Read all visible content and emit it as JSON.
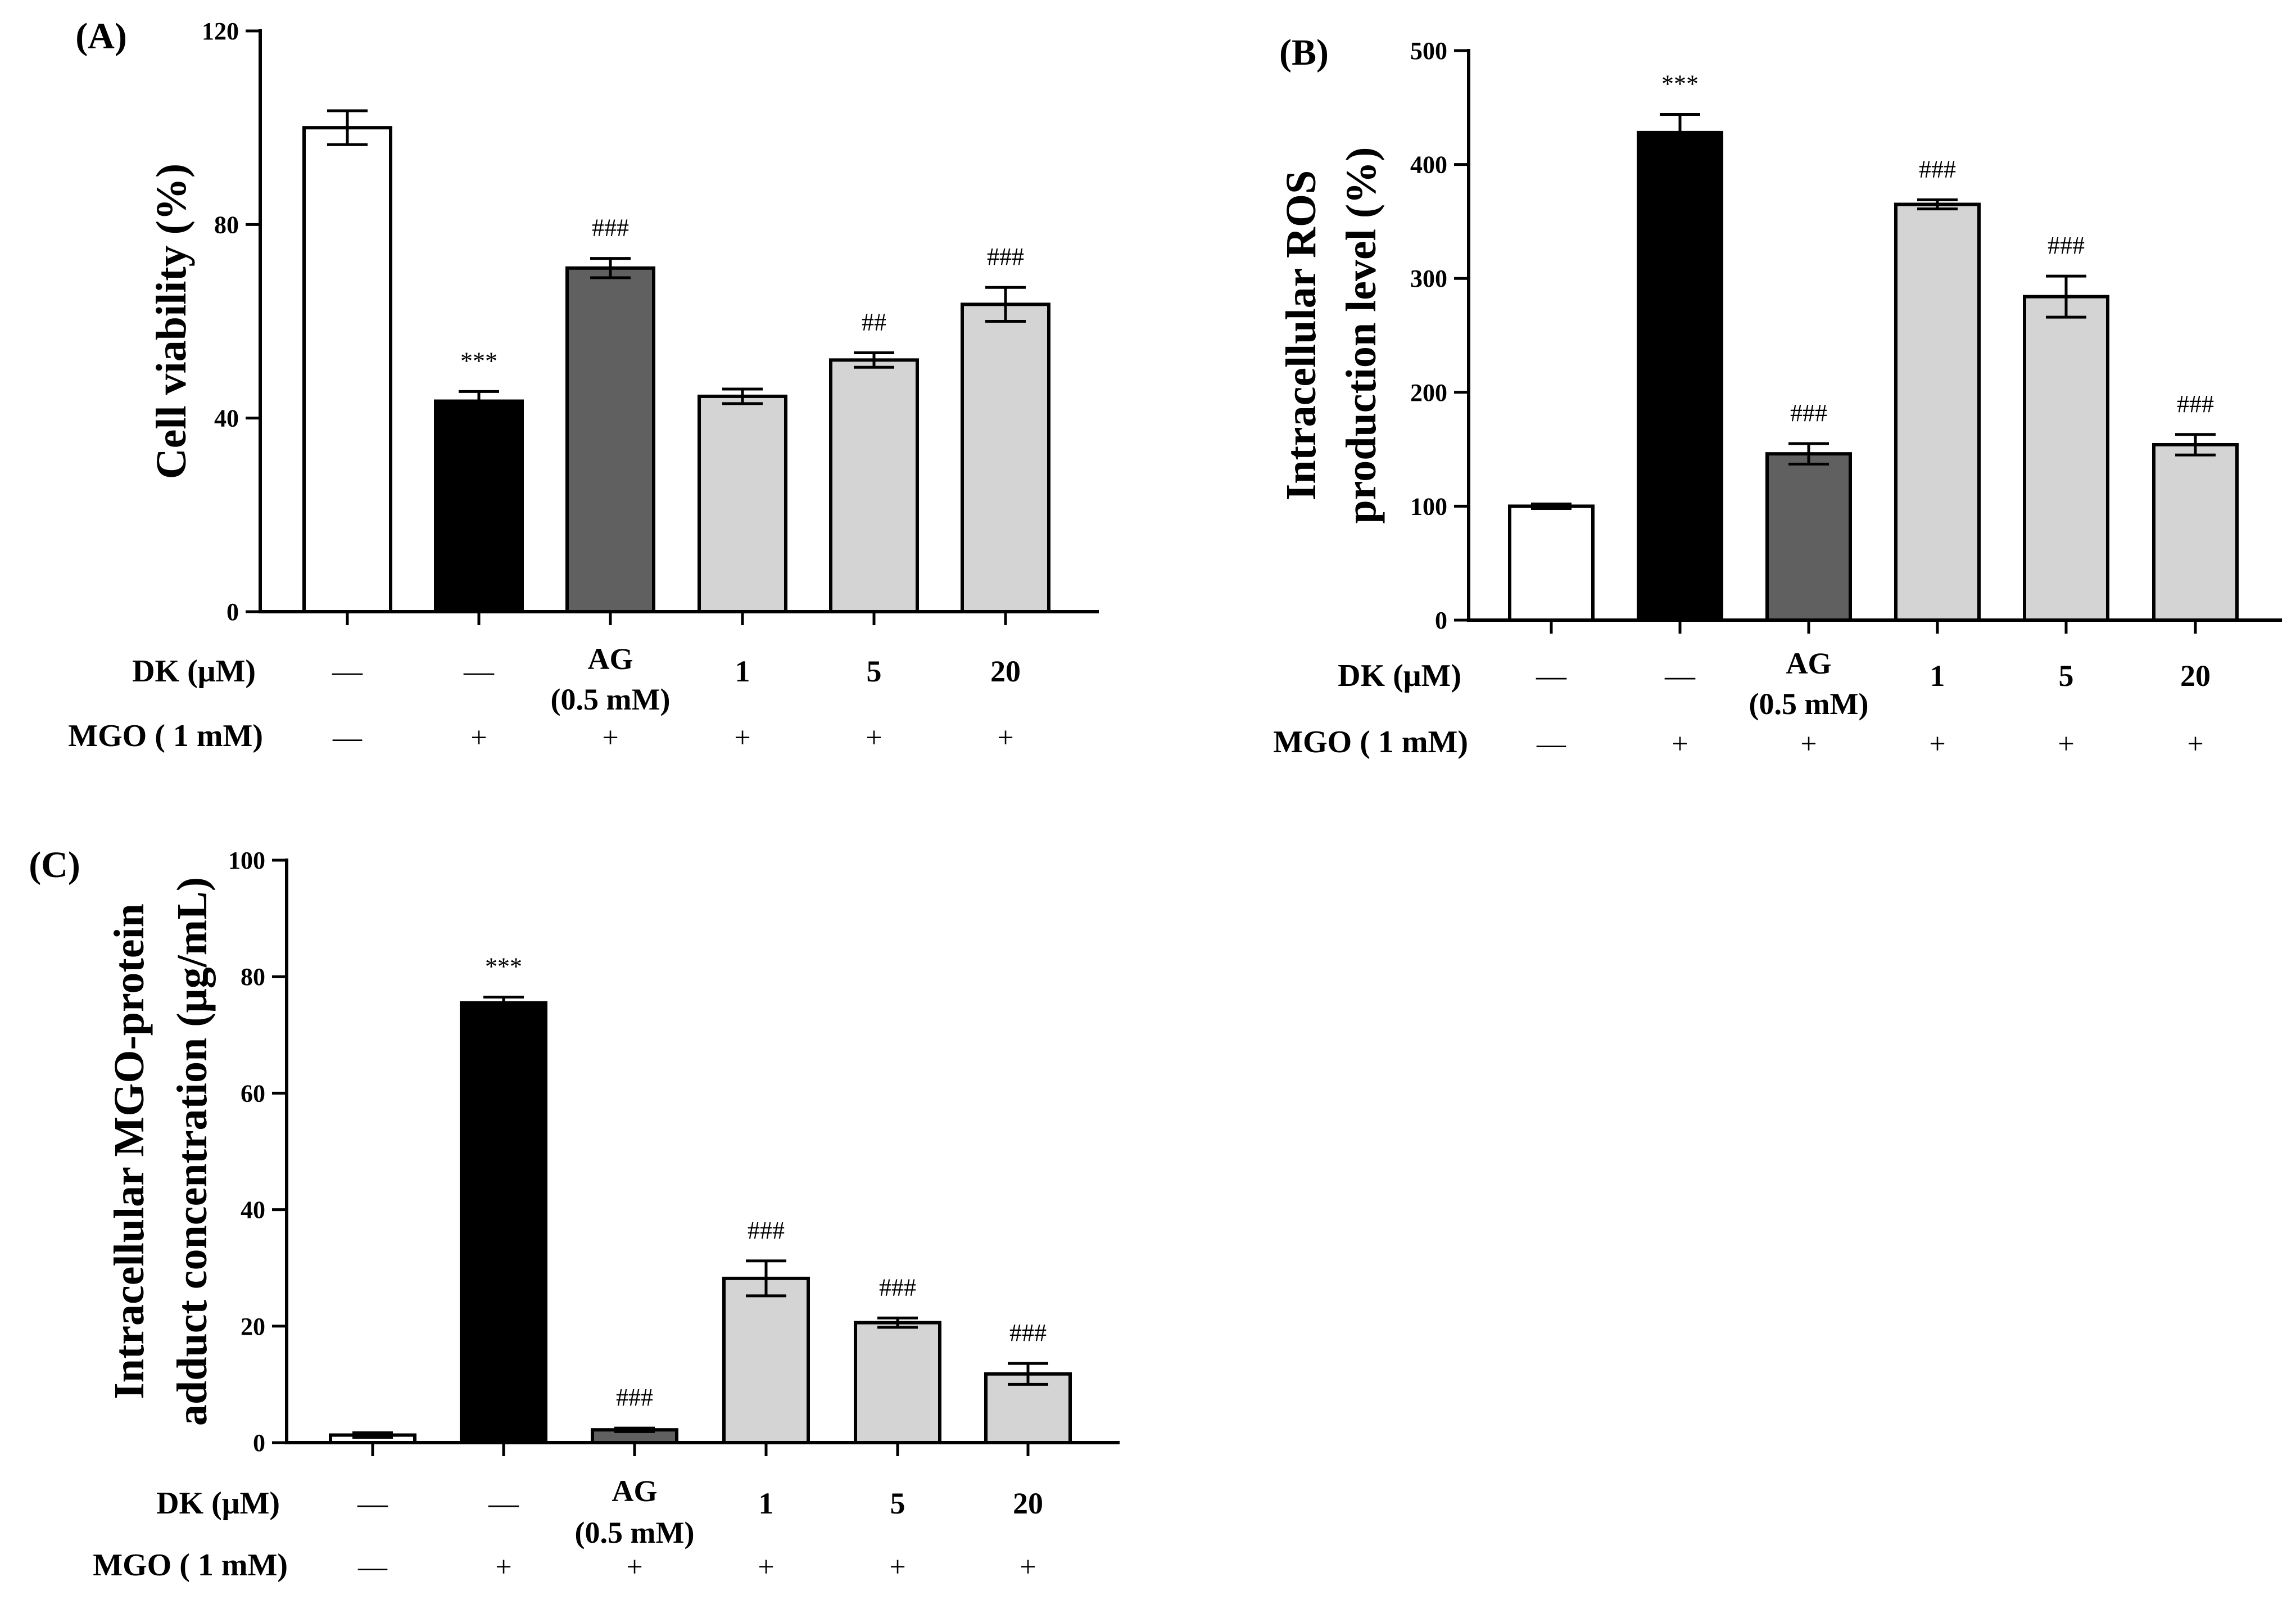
{
  "chart_data": [
    {
      "type": "bar",
      "panel_label": "(A)",
      "title": "",
      "ylabel": "Cell viability (%)",
      "ylabel_lines": [
        "Cell viability (%)"
      ],
      "ylim": [
        0,
        120
      ],
      "yticks": [
        0,
        40,
        80,
        120
      ],
      "grid": false,
      "values": [
        100,
        43.5,
        71,
        44.5,
        52,
        63.5
      ],
      "errors": [
        3.5,
        2,
        2,
        1.5,
        1.5,
        3.5
      ],
      "annotations": [
        "",
        "***",
        "###",
        "",
        "##",
        "###"
      ],
      "bar_colors": [
        "#ffffff",
        "#000000",
        "#606060",
        "#d4d4d4",
        "#d4d4d4",
        "#d4d4d4"
      ],
      "dk_label": "DK  (μM)",
      "mgo_label": "MGO ( 1 mM)",
      "dk_row": [
        [
          "—"
        ],
        [
          "—"
        ],
        [
          "AG",
          "(0.5 mM)"
        ],
        [
          "1"
        ],
        [
          "5"
        ],
        [
          "20"
        ]
      ],
      "mgo_row": [
        "—",
        "+",
        "+",
        "+",
        "+",
        "+"
      ]
    },
    {
      "type": "bar",
      "panel_label": "(B)",
      "title": "",
      "ylabel": "Intracellular ROS production level (%)",
      "ylabel_lines": [
        "Intracellular ROS",
        "production level (%)"
      ],
      "ylim": [
        0,
        500
      ],
      "yticks": [
        0,
        100,
        200,
        300,
        400,
        500
      ],
      "grid": false,
      "values": [
        100,
        428,
        146,
        365,
        284,
        154
      ],
      "errors": [
        2,
        16,
        9,
        4,
        18,
        9
      ],
      "annotations": [
        "",
        "***",
        "###",
        "###",
        "###",
        "###"
      ],
      "bar_colors": [
        "#ffffff",
        "#000000",
        "#606060",
        "#d4d4d4",
        "#d4d4d4",
        "#d4d4d4"
      ],
      "dk_label": "DK  (μM)",
      "mgo_label": "MGO ( 1 mM)",
      "dk_row": [
        [
          "—"
        ],
        [
          "—"
        ],
        [
          "AG",
          "(0.5 mM)"
        ],
        [
          "1"
        ],
        [
          "5"
        ],
        [
          "20"
        ]
      ],
      "mgo_row": [
        "—",
        "+",
        "+",
        "+",
        "+",
        "+"
      ]
    },
    {
      "type": "bar",
      "panel_label": "(C)",
      "title": "",
      "ylabel": "Intracellular MGO-protein adduct concentration (μg/mL)",
      "ylabel_lines": [
        "Intracellular MGO-protein",
        "adduct concentration (μg/mL)"
      ],
      "ylim": [
        0,
        100
      ],
      "yticks": [
        0,
        20,
        40,
        60,
        80,
        100
      ],
      "grid": false,
      "values": [
        1.3,
        75.5,
        2.2,
        28.2,
        20.6,
        11.8
      ],
      "errors": [
        0.4,
        1,
        0.3,
        3,
        0.8,
        1.8
      ],
      "annotations": [
        "",
        "***",
        "###",
        "###",
        "###",
        "###"
      ],
      "bar_colors": [
        "#ffffff",
        "#000000",
        "#606060",
        "#d4d4d4",
        "#d4d4d4",
        "#d4d4d4"
      ],
      "dk_label": "DK  (μM)",
      "mgo_label": "MGO ( 1 mM)",
      "dk_row": [
        [
          "—"
        ],
        [
          "—"
        ],
        [
          "AG",
          "(0.5 mM)"
        ],
        [
          "1"
        ],
        [
          "5"
        ],
        [
          "20"
        ]
      ],
      "mgo_row": [
        "—",
        "+",
        "+",
        "+",
        "+",
        "+"
      ]
    }
  ]
}
